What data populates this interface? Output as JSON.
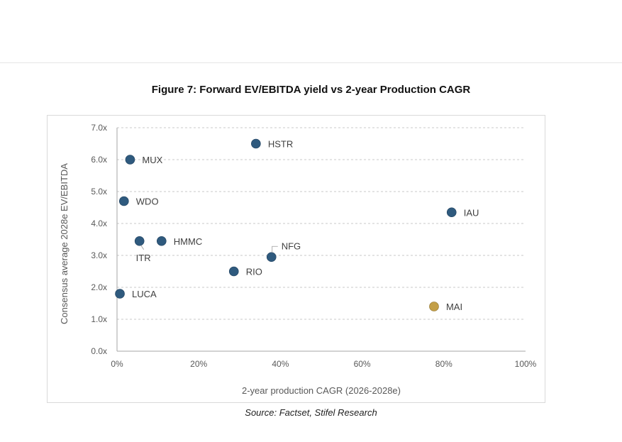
{
  "figure": {
    "title": "Figure 7: Forward EV/EBITDA yield vs 2-year Production CAGR",
    "source": "Source: Factset, Stifel Research"
  },
  "chart_data": {
    "type": "scatter",
    "title": "Figure 7: Forward EV/EBITDA yield vs 2-year Production CAGR",
    "xlabel": "2-year production CAGR (2026-2028e)",
    "ylabel": "Consensus average  2028e  EV/EBITDA",
    "xlim": [
      0,
      100
    ],
    "ylim": [
      0,
      7
    ],
    "x_unit": "%",
    "x_ticks": [
      0,
      20,
      40,
      60,
      80,
      100
    ],
    "x_tick_labels": [
      "0%",
      "20%",
      "40%",
      "60%",
      "80%",
      "100%"
    ],
    "y_ticks": [
      0,
      1,
      2,
      3,
      4,
      5,
      6,
      7
    ],
    "y_tick_labels": [
      "0.0x",
      "1.0x",
      "2.0x",
      "3.0x",
      "4.0x",
      "5.0x",
      "6.0x",
      "7.0x"
    ],
    "grid": "horizontal-dashed",
    "legend": "none",
    "colors": {
      "default_point": "#2f5a7e",
      "highlight_point": "#c39f47",
      "grid": "#c8c8c8",
      "axis": "#a6a6a6",
      "tick_text": "#595959",
      "label_text": "#404040"
    },
    "points": [
      {
        "label": "HSTR",
        "x": 34.0,
        "y": 6.5,
        "highlight": false
      },
      {
        "label": "MUX",
        "x": 3.2,
        "y": 6.0,
        "highlight": false
      },
      {
        "label": "WDO",
        "x": 1.7,
        "y": 4.7,
        "highlight": false
      },
      {
        "label": "IAU",
        "x": 81.9,
        "y": 4.35,
        "highlight": false
      },
      {
        "label": "ITR",
        "x": 5.5,
        "y": 3.45,
        "highlight": false
      },
      {
        "label": "HMMC",
        "x": 10.9,
        "y": 3.45,
        "highlight": false
      },
      {
        "label": "NFG",
        "x": 37.8,
        "y": 2.95,
        "highlight": false
      },
      {
        "label": "RIO",
        "x": 28.6,
        "y": 2.5,
        "highlight": false
      },
      {
        "label": "LUCA",
        "x": 0.7,
        "y": 1.8,
        "highlight": false
      },
      {
        "label": "MAI",
        "x": 77.6,
        "y": 1.4,
        "highlight": true
      }
    ]
  }
}
